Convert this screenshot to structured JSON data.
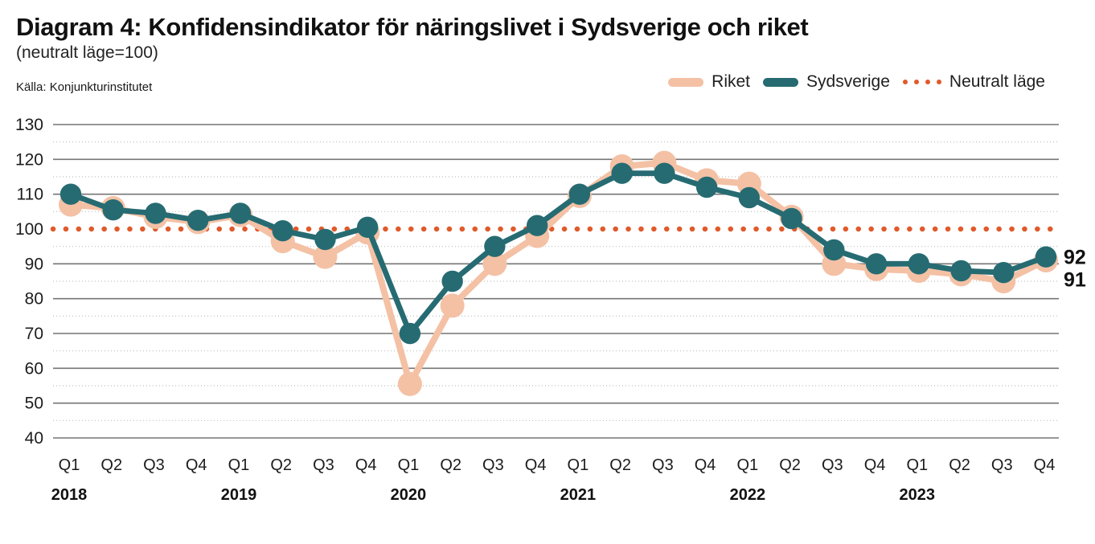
{
  "header": {
    "title": "Diagram 4: Konfidensindikator för näringslivet i Sydsverige och riket",
    "subtitle": "(neutralt läge=100)",
    "source": "Källa: Konjunkturinstitutet"
  },
  "legend": [
    {
      "label": "Riket",
      "swatch": "line",
      "color": "#f4c1a5"
    },
    {
      "label": "Sydsverige",
      "swatch": "line",
      "color": "#266b72"
    },
    {
      "label": "Neutralt läge",
      "swatch": "dotted",
      "color": "#e05a2b"
    }
  ],
  "colors": {
    "riket": "#f4c1a5",
    "sydsverige": "#266b72",
    "neutral": "#e05a2b",
    "major_gridline": "#757575",
    "minor_gridline": "#bdbdbd",
    "text": "#111111"
  },
  "chart_data": {
    "type": "line",
    "title": "Diagram 4: Konfidensindikator för näringslivet i Sydsverige och riket",
    "subtitle": "(neutralt läge=100)",
    "source": "Källa: Konjunkturinstitutet",
    "x_quarters": [
      "Q1",
      "Q2",
      "Q3",
      "Q4",
      "Q1",
      "Q2",
      "Q3",
      "Q4",
      "Q1",
      "Q2",
      "Q3",
      "Q4",
      "Q1",
      "Q2",
      "Q3",
      "Q4",
      "Q1",
      "Q2",
      "Q3",
      "Q4",
      "Q1",
      "Q2",
      "Q3",
      "Q4"
    ],
    "x_years": [
      "2018",
      "2019",
      "2020",
      "2021",
      "2022",
      "2023"
    ],
    "ylim": [
      40,
      130
    ],
    "y_ticks": [
      40,
      50,
      60,
      70,
      80,
      90,
      100,
      110,
      120,
      130
    ],
    "grid": {
      "major_step": 10,
      "minor_step": 5
    },
    "legend_position": "top-right",
    "series": [
      {
        "name": "Riket",
        "color": "#f4c1a5",
        "end_label": "91",
        "values": [
          107,
          106,
          103.5,
          102,
          104,
          96.5,
          92,
          99,
          55.5,
          78,
          90,
          98,
          109.5,
          118,
          119,
          114,
          113,
          103.5,
          90,
          88.5,
          88,
          87,
          85,
          91
        ]
      },
      {
        "name": "Sydsverige",
        "color": "#266b72",
        "end_label": "92",
        "values": [
          110,
          105.5,
          104.5,
          102.5,
          104.5,
          99.5,
          97,
          100.5,
          70,
          85,
          95,
          101,
          110,
          116,
          116,
          112,
          109,
          103,
          94,
          90,
          90,
          88,
          87.5,
          92
        ]
      }
    ],
    "neutral_line": {
      "label": "Neutralt läge",
      "value": 100,
      "color": "#e05a2b"
    }
  }
}
